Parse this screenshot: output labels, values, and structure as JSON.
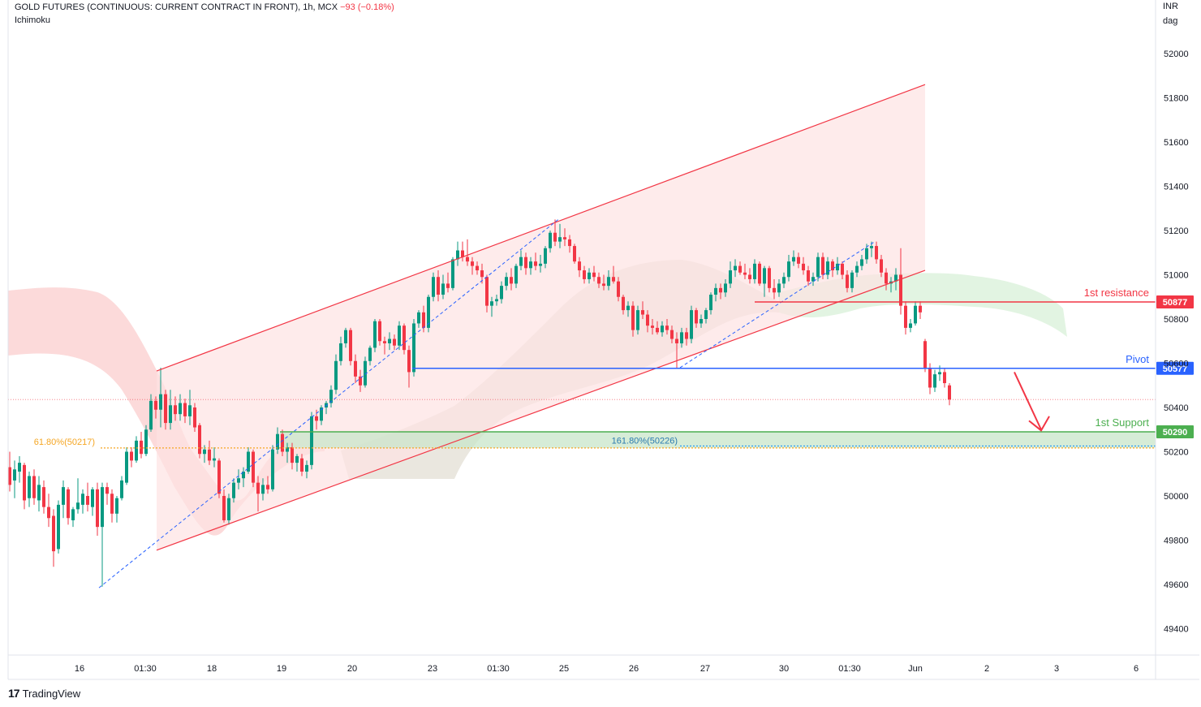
{
  "header": {
    "symbol": "GOLD FUTURES (CONTINUOUS: CURRENT CONTRACT IN FRONT), 1h, MCX",
    "change": "−93 (−0.18%)",
    "indicator": "Ichimoku"
  },
  "price_axis": {
    "currency": "INR",
    "unit": "dag"
  },
  "brand": {
    "name": "TradingView"
  },
  "colors": {
    "up": "#089981",
    "down": "#f23645",
    "resistance": "#f23645",
    "pivot": "#2962ff",
    "support": "#4caf50",
    "fib618": "#f5a623",
    "fib1618": "#2196f3",
    "channel_fill": "#fde3e3",
    "cloud_bear": "#fcd4d4",
    "cloud_bull": "#dff3df"
  },
  "chart_data": {
    "type": "candlestick",
    "title": "",
    "ylim": [
      49250,
      52250
    ],
    "y_ticks": [
      49400,
      49600,
      49800,
      50000,
      50200,
      50400,
      50600,
      50800,
      51000,
      51200,
      51400,
      51600,
      51800,
      52000
    ],
    "x_ticks": [
      "16",
      "01:30",
      "18",
      "19",
      "20",
      "23",
      "01:30",
      "25",
      "26",
      "27",
      "30",
      "01:30",
      "Jun",
      "2",
      "3",
      "6"
    ],
    "levels": [
      {
        "label": "1st resistance",
        "value": 50877,
        "badge": "50877"
      },
      {
        "label": "Pivot",
        "value": 50577,
        "badge": "50577"
      },
      {
        "label": "1st Support",
        "value": 50290,
        "badge": "50290"
      }
    ],
    "fibonacci": [
      {
        "label": "61.80%(50217)",
        "value": 50217
      },
      {
        "label": "161.80%(50226)",
        "value": 50226
      }
    ],
    "last_price": 50436,
    "channel": {
      "upper": [
        [
          193,
          50565
        ],
        [
          1140,
          51860
        ]
      ],
      "lower": [
        [
          193,
          49755
        ],
        [
          1140,
          51020
        ]
      ]
    },
    "candles": [
      [
        12,
        50130,
        50200,
        50020,
        50050
      ],
      [
        18,
        50070,
        50160,
        49990,
        50120
      ],
      [
        24,
        50110,
        50180,
        50060,
        50150
      ],
      [
        30,
        50140,
        50150,
        49940,
        49980
      ],
      [
        36,
        49990,
        50110,
        49950,
        50090
      ],
      [
        42,
        50090,
        50120,
        49960,
        49990
      ],
      [
        48,
        49980,
        50090,
        49930,
        50050
      ],
      [
        54,
        50040,
        50070,
        49920,
        49950
      ],
      [
        60,
        49950,
        50010,
        49860,
        49900
      ],
      [
        66,
        49910,
        49940,
        49680,
        49750
      ],
      [
        72,
        49760,
        49980,
        49740,
        49960
      ],
      [
        78,
        49960,
        50070,
        49900,
        50040
      ],
      [
        84,
        50030,
        50040,
        49870,
        49900
      ],
      [
        90,
        49890,
        49950,
        49860,
        49940
      ],
      [
        96,
        49940,
        50080,
        49920,
        49970
      ],
      [
        102,
        49960,
        50030,
        49920,
        50010
      ],
      [
        108,
        50000,
        50060,
        49930,
        49960
      ],
      [
        114,
        49950,
        50040,
        49910,
        50030
      ],
      [
        120,
        50030,
        50060,
        49820,
        49860
      ],
      [
        126,
        49860,
        50060,
        49590,
        50040
      ],
      [
        132,
        50040,
        50060,
        49960,
        50010
      ],
      [
        138,
        50010,
        50030,
        49880,
        49920
      ],
      [
        144,
        49920,
        50000,
        49880,
        49990
      ],
      [
        150,
        49990,
        50090,
        49980,
        50070
      ],
      [
        156,
        50060,
        50220,
        50050,
        50200
      ],
      [
        162,
        50200,
        50220,
        50130,
        50160
      ],
      [
        168,
        50160,
        50270,
        50150,
        50250
      ],
      [
        174,
        50250,
        50290,
        50170,
        50190
      ],
      [
        180,
        50190,
        50320,
        50180,
        50300
      ],
      [
        186,
        50300,
        50460,
        50290,
        50430
      ],
      [
        192,
        50430,
        50450,
        50350,
        50390
      ],
      [
        198,
        50390,
        50580,
        50310,
        50460
      ],
      [
        204,
        50460,
        50480,
        50300,
        50330
      ],
      [
        210,
        50330,
        50480,
        50300,
        50410
      ],
      [
        216,
        50410,
        50450,
        50340,
        50370
      ],
      [
        222,
        50370,
        50460,
        50340,
        50420
      ],
      [
        228,
        50420,
        50440,
        50330,
        50360
      ],
      [
        234,
        50360,
        50480,
        50320,
        50410
      ],
      [
        240,
        50400,
        50420,
        50290,
        50310
      ],
      [
        246,
        50320,
        50330,
        50170,
        50190
      ],
      [
        252,
        50190,
        50230,
        50150,
        50210
      ],
      [
        258,
        50210,
        50250,
        50140,
        50160
      ],
      [
        264,
        50160,
        50220,
        50130,
        50170
      ],
      [
        270,
        50160,
        50170,
        49990,
        50010
      ],
      [
        276,
        50000,
        50030,
        49880,
        49890
      ],
      [
        282,
        49890,
        50010,
        49870,
        49990
      ],
      [
        288,
        49990,
        50080,
        49970,
        50060
      ],
      [
        294,
        50060,
        50120,
        50030,
        50080
      ],
      [
        300,
        50080,
        50130,
        50040,
        50110
      ],
      [
        306,
        50110,
        50220,
        50100,
        50200
      ],
      [
        312,
        50200,
        50210,
        50040,
        50060
      ],
      [
        318,
        50060,
        50090,
        49930,
        50010
      ],
      [
        324,
        50010,
        50080,
        49980,
        50050
      ],
      [
        330,
        50050,
        50090,
        50010,
        50030
      ],
      [
        336,
        50030,
        50230,
        50020,
        50210
      ],
      [
        342,
        50210,
        50310,
        50190,
        50280
      ],
      [
        348,
        50280,
        50300,
        50180,
        50200
      ],
      [
        354,
        50200,
        50240,
        50150,
        50220
      ],
      [
        360,
        50220,
        50240,
        50120,
        50150
      ],
      [
        366,
        50150,
        50190,
        50110,
        50180
      ],
      [
        372,
        50170,
        50190,
        50090,
        50110
      ],
      [
        378,
        50110,
        50160,
        50080,
        50140
      ],
      [
        384,
        50140,
        50380,
        50120,
        50360
      ],
      [
        390,
        50360,
        50390,
        50300,
        50340
      ],
      [
        396,
        50340,
        50410,
        50320,
        50400
      ],
      [
        402,
        50400,
        50430,
        50370,
        50420
      ],
      [
        408,
        50420,
        50500,
        50400,
        50480
      ],
      [
        414,
        50480,
        50640,
        50460,
        50610
      ],
      [
        420,
        50610,
        50720,
        50590,
        50690
      ],
      [
        426,
        50690,
        50760,
        50670,
        50750
      ],
      [
        432,
        50750,
        50760,
        50590,
        50610
      ],
      [
        438,
        50610,
        50640,
        50510,
        50540
      ],
      [
        444,
        50540,
        50570,
        50470,
        50500
      ],
      [
        450,
        50500,
        50630,
        50490,
        50610
      ],
      [
        456,
        50610,
        50680,
        50590,
        50670
      ],
      [
        462,
        50670,
        50800,
        50650,
        50790
      ],
      [
        468,
        50790,
        50800,
        50680,
        50700
      ],
      [
        474,
        50700,
        50720,
        50640,
        50690
      ],
      [
        480,
        50690,
        50740,
        50660,
        50710
      ],
      [
        486,
        50710,
        50730,
        50660,
        50680
      ],
      [
        492,
        50680,
        50790,
        50660,
        50770
      ],
      [
        498,
        50770,
        50780,
        50640,
        50660
      ],
      [
        504,
        50660,
        50680,
        50490,
        50560
      ],
      [
        510,
        50560,
        50800,
        50540,
        50780
      ],
      [
        516,
        50780,
        50840,
        50760,
        50830
      ],
      [
        522,
        50830,
        50860,
        50740,
        50760
      ],
      [
        528,
        50760,
        50910,
        50740,
        50900
      ],
      [
        534,
        50900,
        51010,
        50880,
        50990
      ],
      [
        540,
        50990,
        51020,
        50880,
        50910
      ],
      [
        546,
        50910,
        51000,
        50890,
        50960
      ],
      [
        552,
        50960,
        51010,
        50920,
        50940
      ],
      [
        558,
        50940,
        51080,
        50930,
        51070
      ],
      [
        564,
        51070,
        51150,
        51040,
        51110
      ],
      [
        570,
        51110,
        51150,
        51060,
        51080
      ],
      [
        576,
        51080,
        51160,
        51040,
        51060
      ],
      [
        582,
        51060,
        51080,
        51000,
        51040
      ],
      [
        588,
        51040,
        51060,
        51000,
        51020
      ],
      [
        594,
        51020,
        51050,
        50960,
        50990
      ],
      [
        600,
        50990,
        51000,
        50830,
        50860
      ],
      [
        606,
        50860,
        50900,
        50810,
        50880
      ],
      [
        612,
        50880,
        50910,
        50860,
        50890
      ],
      [
        618,
        50890,
        50970,
        50870,
        50950
      ],
      [
        624,
        50950,
        51010,
        50930,
        50990
      ],
      [
        630,
        50990,
        51030,
        50930,
        50960
      ],
      [
        636,
        50960,
        51050,
        50940,
        51040
      ],
      [
        642,
        51040,
        51110,
        51020,
        51080
      ],
      [
        648,
        51080,
        51100,
        51000,
        51030
      ],
      [
        654,
        51030,
        51080,
        51000,
        51060
      ],
      [
        660,
        51060,
        51100,
        51020,
        51040
      ],
      [
        666,
        51040,
        51090,
        51010,
        51050
      ],
      [
        672,
        51050,
        51130,
        51030,
        51120
      ],
      [
        678,
        51120,
        51200,
        51100,
        51190
      ],
      [
        684,
        51190,
        51250,
        51130,
        51150
      ],
      [
        690,
        51150,
        51230,
        51120,
        51170
      ],
      [
        696,
        51170,
        51210,
        51130,
        51160
      ],
      [
        702,
        51160,
        51180,
        51100,
        51130
      ],
      [
        708,
        51130,
        51140,
        51050,
        51060
      ],
      [
        714,
        51060,
        51080,
        50990,
        51020
      ],
      [
        720,
        51020,
        51040,
        50960,
        50980
      ],
      [
        726,
        50980,
        51030,
        50960,
        51010
      ],
      [
        732,
        51010,
        51040,
        50970,
        50990
      ],
      [
        738,
        50990,
        51010,
        50940,
        50960
      ],
      [
        744,
        50960,
        51000,
        50930,
        50950
      ],
      [
        750,
        50950,
        51020,
        50930,
        50990
      ],
      [
        756,
        50990,
        51040,
        50960,
        50970
      ],
      [
        762,
        50970,
        50990,
        50880,
        50900
      ],
      [
        768,
        50900,
        50910,
        50820,
        50840
      ],
      [
        774,
        50840,
        50880,
        50810,
        50860
      ],
      [
        780,
        50860,
        50880,
        50720,
        50750
      ],
      [
        786,
        50750,
        50860,
        50730,
        50840
      ],
      [
        792,
        50840,
        50880,
        50800,
        50820
      ],
      [
        798,
        50820,
        50840,
        50740,
        50770
      ],
      [
        804,
        50770,
        50800,
        50730,
        50760
      ],
      [
        810,
        50760,
        50790,
        50730,
        50740
      ],
      [
        816,
        50740,
        50790,
        50720,
        50770
      ],
      [
        822,
        50770,
        50800,
        50730,
        50750
      ],
      [
        828,
        50750,
        50770,
        50690,
        50710
      ],
      [
        834,
        50710,
        50740,
        50580,
        50690
      ],
      [
        840,
        50690,
        50760,
        50670,
        50740
      ],
      [
        846,
        50740,
        50760,
        50680,
        50710
      ],
      [
        852,
        50710,
        50860,
        50690,
        50840
      ],
      [
        858,
        50840,
        50850,
        50760,
        50780
      ],
      [
        864,
        50780,
        50820,
        50760,
        50800
      ],
      [
        870,
        50800,
        50850,
        50780,
        50840
      ],
      [
        876,
        50840,
        50920,
        50820,
        50910
      ],
      [
        882,
        50910,
        50960,
        50880,
        50940
      ],
      [
        888,
        50940,
        50960,
        50890,
        50920
      ],
      [
        894,
        50920,
        50980,
        50900,
        50960
      ],
      [
        900,
        50960,
        51060,
        50940,
        51020
      ],
      [
        906,
        51020,
        51070,
        50990,
        51040
      ],
      [
        912,
        51040,
        51060,
        51000,
        51010
      ],
      [
        918,
        51010,
        51050,
        50980,
        51000
      ],
      [
        924,
        51000,
        51030,
        50960,
        50980
      ],
      [
        930,
        50980,
        51070,
        50960,
        51050
      ],
      [
        936,
        51050,
        51060,
        50950,
        50960
      ],
      [
        942,
        50960,
        51040,
        50900,
        51030
      ],
      [
        948,
        51030,
        51040,
        50920,
        50940
      ],
      [
        954,
        50940,
        50980,
        50890,
        50920
      ],
      [
        960,
        50920,
        50980,
        50900,
        50960
      ],
      [
        966,
        50960,
        51010,
        50940,
        50990
      ],
      [
        972,
        50990,
        51090,
        50970,
        51060
      ],
      [
        978,
        51060,
        51110,
        51040,
        51080
      ],
      [
        984,
        51080,
        51100,
        51030,
        51050
      ],
      [
        990,
        51050,
        51080,
        51000,
        51020
      ],
      [
        996,
        51020,
        51040,
        50950,
        50970
      ],
      [
        1002,
        50970,
        51010,
        50950,
        50990
      ],
      [
        1008,
        50990,
        51100,
        50970,
        51080
      ],
      [
        1014,
        51080,
        51100,
        50980,
        51000
      ],
      [
        1020,
        51000,
        51080,
        50980,
        51060
      ],
      [
        1026,
        51060,
        51070,
        50990,
        51020
      ],
      [
        1032,
        51020,
        51080,
        51000,
        51050
      ],
      [
        1038,
        51050,
        51060,
        50980,
        51000
      ],
      [
        1044,
        51000,
        51020,
        50920,
        50940
      ],
      [
        1050,
        50940,
        51020,
        50920,
        51010
      ],
      [
        1056,
        51010,
        51060,
        50990,
        51040
      ],
      [
        1062,
        51040,
        51090,
        51020,
        51070
      ],
      [
        1068,
        51070,
        51140,
        51050,
        51120
      ],
      [
        1074,
        51120,
        51150,
        51080,
        51130
      ],
      [
        1080,
        51130,
        51150,
        51050,
        51070
      ],
      [
        1086,
        51070,
        51090,
        50990,
        51010
      ],
      [
        1092,
        51010,
        51030,
        50930,
        50960
      ],
      [
        1098,
        50960,
        50990,
        50920,
        50970
      ],
      [
        1104,
        50970,
        51030,
        50930,
        51000
      ],
      [
        1110,
        51000,
        51120,
        50820,
        50860
      ],
      [
        1116,
        50860,
        50880,
        50730,
        50760
      ],
      [
        1122,
        50760,
        50800,
        50740,
        50780
      ],
      [
        1128,
        50780,
        50880,
        50770,
        50860
      ],
      [
        1134,
        50860,
        50880,
        50800,
        50830
      ],
      [
        1140,
        50700,
        50710,
        50560,
        50580
      ],
      [
        1146,
        50580,
        50600,
        50460,
        50490
      ],
      [
        1152,
        50490,
        50570,
        50470,
        50550
      ],
      [
        1158,
        50550,
        50590,
        50520,
        50560
      ],
      [
        1164,
        50560,
        50580,
        50490,
        50510
      ],
      [
        1170,
        50500,
        50510,
        50410,
        50436
      ]
    ]
  }
}
